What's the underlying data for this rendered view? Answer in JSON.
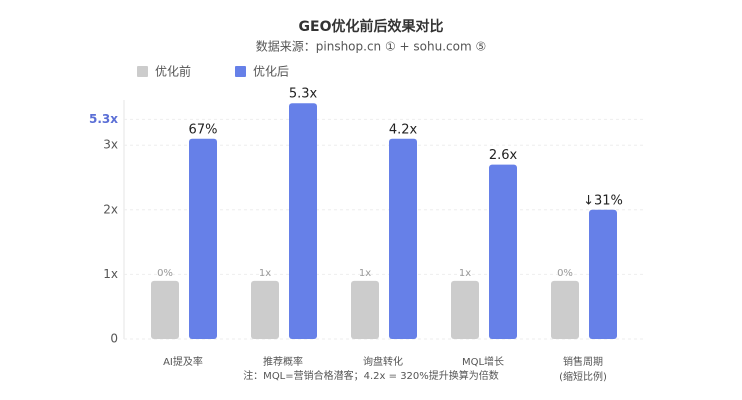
{
  "chart_data": {
    "type": "bar",
    "title": "GEO优化前后效果对比",
    "subtitle": "数据来源：pinshop.cn ① + sohu.com ⑤",
    "categories": [
      "AI提及率",
      "推荐概率",
      "询盘转化",
      "MQL增长",
      "销售周期"
    ],
    "category_notes": [
      null,
      null,
      null,
      null,
      "(缩短比例)"
    ],
    "series": [
      {
        "name": "优化前",
        "color": "#cccccc",
        "values": [
          0.9,
          0.9,
          0.9,
          0.9,
          0.9
        ],
        "labels": [
          "0%",
          "1x",
          "1x",
          "1x",
          "0%"
        ]
      },
      {
        "name": "优化后",
        "color": "#6680e8",
        "values": [
          3.1,
          3.65,
          3.1,
          2.7,
          2.0
        ],
        "labels": [
          "67%",
          "5.3x",
          "4.2x",
          "2.6x",
          "↓31%"
        ]
      }
    ],
    "ylim": [
      0,
      3.7
    ],
    "yticks": [
      0,
      {
        "value": 1,
        "label": "1x"
      },
      {
        "value": 2,
        "label": "2x"
      },
      {
        "value": 3,
        "label": "3x"
      },
      {
        "value": 3.4,
        "label": "5.3x",
        "color": "#5b6fd6"
      }
    ],
    "grid": true,
    "legend": "top-left",
    "footnote": "注：MQL=营销合格潜客；4.2x = 320%提升换算为倍数"
  }
}
